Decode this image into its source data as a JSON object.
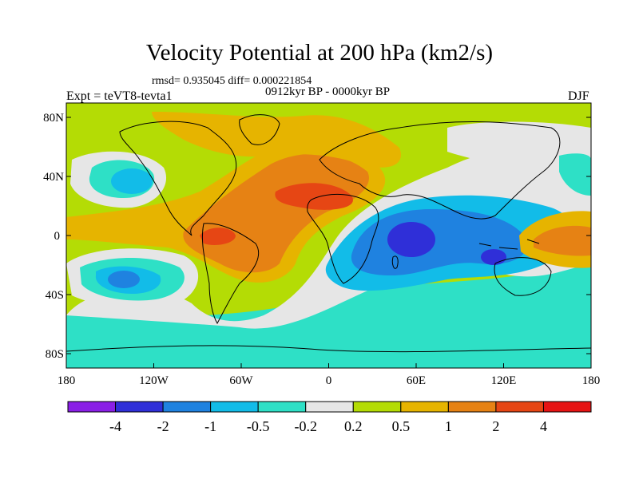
{
  "title": "Velocity Potential at 200 hPa (km2/s)",
  "stats": "rmsd= 0.935045 diff= 0.000221854",
  "subtitle": "0912kyr BP - 0000kyr BP",
  "experiment": "Expt = teVT8-tevta1",
  "season": "DJF",
  "lat_labels": [
    "80N",
    "40N",
    "0",
    "40S",
    "80S"
  ],
  "lon_labels": [
    "180",
    "120W",
    "60W",
    "0",
    "60E",
    "120E",
    "180"
  ],
  "colorbar": {
    "labels": [
      "-4",
      "-2",
      "-1",
      "-0.5",
      "-0.2",
      "0.2",
      "0.5",
      "1",
      "2",
      "4"
    ],
    "colors": [
      "#8a1fe6",
      "#2f2fd8",
      "#1f82e0",
      "#12bce8",
      "#2ee0c6",
      "#e6e6e6",
      "#b4dc05",
      "#e6b400",
      "#e68214",
      "#e64614",
      "#e61414"
    ]
  }
}
